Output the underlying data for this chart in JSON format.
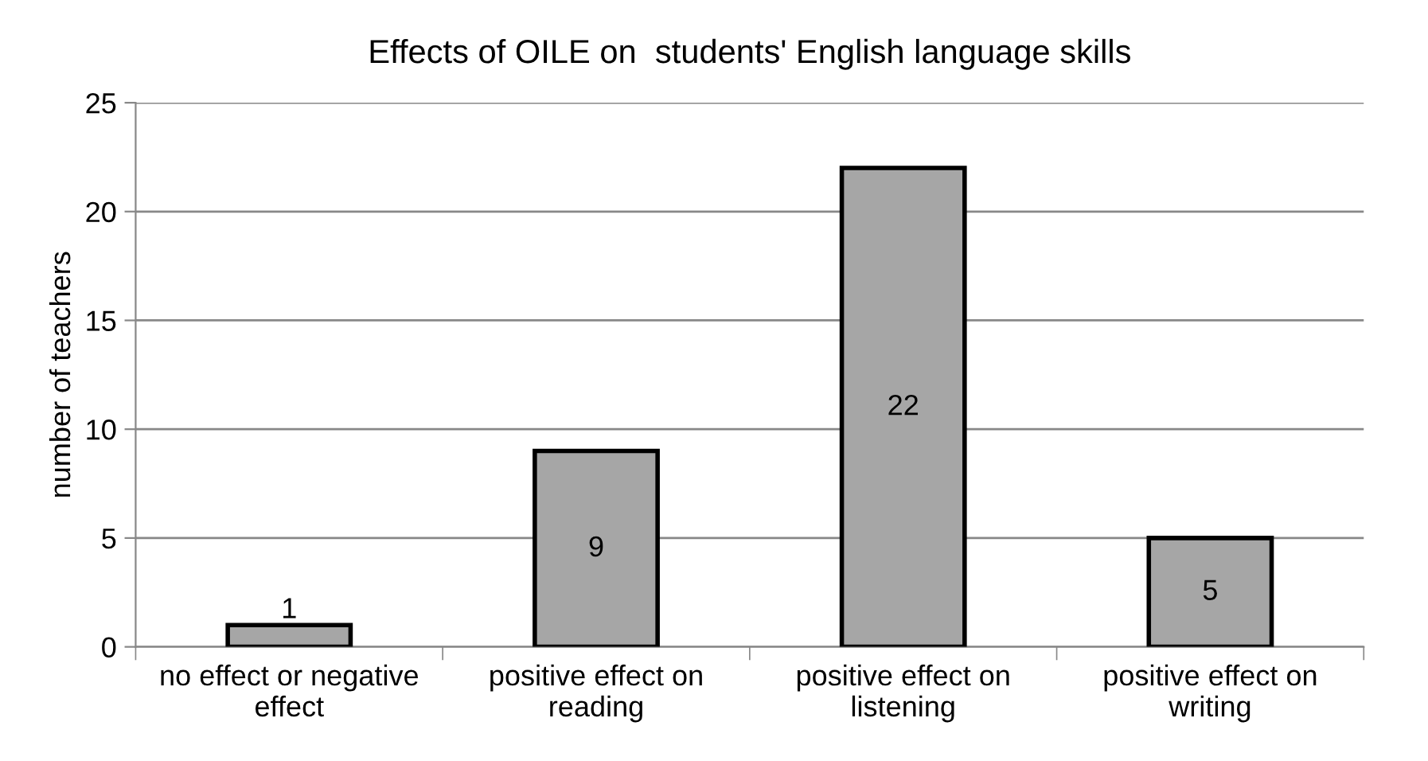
{
  "chart_data": {
    "type": "bar",
    "title": "Effects of OILE on  students' English language skills",
    "ylabel": "number of teachers",
    "categories": [
      "no effect or negative\neffect",
      "positive effect on\nreading",
      "positive effect on\nlistening",
      "positive effect on\nwriting"
    ],
    "values": [
      1,
      9,
      22,
      5
    ],
    "color": "#a6a6a6",
    "ylim": [
      0,
      25
    ],
    "yticks": [
      0,
      5,
      10,
      15,
      20,
      25
    ],
    "grid": "y",
    "data_labels": true
  }
}
